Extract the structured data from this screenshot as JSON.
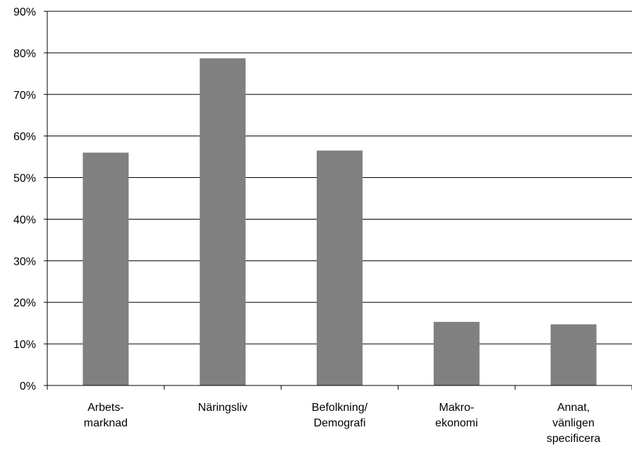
{
  "chart_data": {
    "type": "bar",
    "title": "",
    "xlabel": "",
    "ylabel": "",
    "categories": [
      [
        "Arbets-",
        "marknad"
      ],
      [
        "Näringsliv"
      ],
      [
        "Befolkning/",
        "Demografi"
      ],
      [
        "Makro-",
        "ekonomi"
      ],
      [
        "Annat,",
        "vänligen",
        "specificera"
      ]
    ],
    "values": [
      56,
      78.7,
      56.5,
      15.3,
      14.7
    ],
    "ylim": [
      0,
      90
    ],
    "y_ticks": [
      0,
      10,
      20,
      30,
      40,
      50,
      60,
      70,
      80,
      90
    ],
    "y_tick_labels": [
      "0%",
      "10%",
      "20%",
      "30%",
      "40%",
      "50%",
      "60%",
      "70%",
      "80%",
      "90%"
    ],
    "grid": true,
    "legend": "none",
    "colors": {
      "bar": "#808080",
      "grid": "#000000",
      "axis": "#000000"
    }
  }
}
